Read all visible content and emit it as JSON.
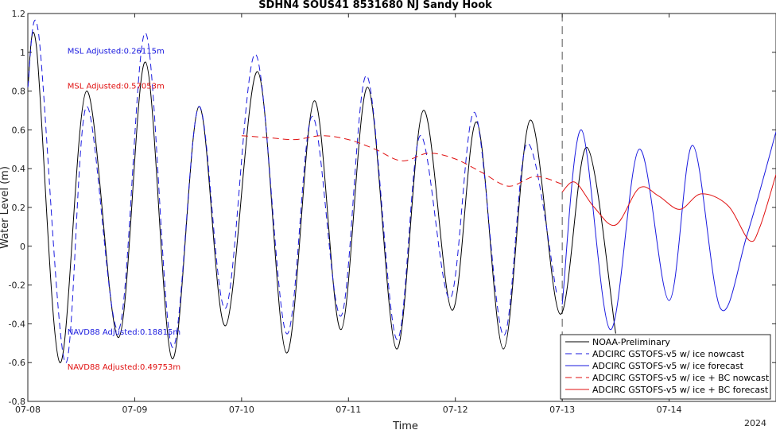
{
  "chart_data": {
    "type": "line",
    "title": "SDHN4 SOUS41 8531680 NJ Sandy Hook",
    "xlabel": "Time",
    "ylabel": "Water Level (m)",
    "xlim": [
      0,
      7
    ],
    "ylim": [
      -0.8,
      1.2
    ],
    "x_ticks": [
      {
        "x": 0,
        "label": "07-08"
      },
      {
        "x": 1,
        "label": "07-09"
      },
      {
        "x": 2,
        "label": "07-10"
      },
      {
        "x": 3,
        "label": "07-11"
      },
      {
        "x": 4,
        "label": "07-12"
      },
      {
        "x": 5,
        "label": "07-13"
      },
      {
        "x": 6,
        "label": "07-14"
      }
    ],
    "year_label": "2024",
    "y_ticks": [
      -0.8,
      -0.6,
      -0.4,
      -0.2,
      0,
      0.2,
      0.4,
      0.6,
      0.8,
      1,
      1.2
    ],
    "y_tick_labels": [
      "-0.8",
      "-0.6",
      "-0.4",
      "-0.2",
      "0",
      "0.2",
      "0.4",
      "0.6",
      "0.8",
      "1",
      "1.2"
    ],
    "nowcast_divider_x": 5.0,
    "grid": false,
    "legend_position": "bottom-right",
    "annotations": [
      {
        "text": "MSL Adjusted:0.26115m",
        "color": "#1a1adf",
        "x": 0.37,
        "y": 1.01
      },
      {
        "text": "MSL Adjusted:0.57053m",
        "color": "#e01010",
        "x": 0.37,
        "y": 0.83
      },
      {
        "text": "NAVD88 Adjusted:0.18815m",
        "color": "#1a1adf",
        "x": 0.37,
        "y": -0.44
      },
      {
        "text": "NAVD88 Adjusted:0.49753m",
        "color": "#e01010",
        "x": 0.37,
        "y": -0.62
      }
    ],
    "series": [
      {
        "name": "NOAA-Preliminary",
        "color": "#000000",
        "dash": "",
        "x": [
          0.0,
          0.08,
          0.3,
          0.55,
          0.85,
          1.1,
          1.35,
          1.6,
          1.85,
          2.15,
          2.42,
          2.68,
          2.93,
          3.18,
          3.45,
          3.7,
          3.97,
          4.2,
          4.45,
          4.7,
          4.98,
          5.23,
          5.5
        ],
        "y": [
          0.82,
          1.03,
          -0.6,
          0.8,
          -0.47,
          0.95,
          -0.58,
          0.72,
          -0.41,
          0.9,
          -0.55,
          0.75,
          -0.43,
          0.82,
          -0.53,
          0.7,
          -0.33,
          0.64,
          -0.53,
          0.65,
          -0.35,
          0.51,
          -0.45
        ]
      },
      {
        "name": "ADCIRC GSTOFS-v5 w/ ice nowcast",
        "color": "#1a1adf",
        "dash": "8,5",
        "x": [
          0.0,
          0.1,
          0.35,
          0.55,
          0.85,
          1.1,
          1.35,
          1.6,
          1.85,
          2.13,
          2.42,
          2.66,
          2.93,
          3.17,
          3.45,
          3.67,
          3.95,
          4.18,
          4.45,
          4.67,
          4.95
        ],
        "y": [
          0.82,
          1.1,
          -0.6,
          0.72,
          -0.43,
          1.1,
          -0.52,
          0.72,
          -0.32,
          0.99,
          -0.45,
          0.67,
          -0.36,
          0.88,
          -0.48,
          0.57,
          -0.27,
          0.69,
          -0.46,
          0.53,
          -0.25
        ]
      },
      {
        "name": "ADCIRC GSTOFS-v5 w/ ice forecast",
        "color": "#1a1adf",
        "dash": "",
        "x": [
          5.0,
          5.18,
          5.45,
          5.72,
          6.0,
          6.22,
          6.48,
          6.73,
          7.0
        ],
        "y": [
          -0.3,
          0.6,
          -0.43,
          0.5,
          -0.28,
          0.52,
          -0.32,
          0.06,
          0.59
        ]
      },
      {
        "name": "ADCIRC GSTOFS-v5 w/ ice + BC nowcast",
        "color": "#e01010",
        "dash": "8,5",
        "x": [
          2.0,
          2.25,
          2.5,
          2.75,
          3.0,
          3.25,
          3.5,
          3.75,
          4.0,
          4.25,
          4.5,
          4.75,
          5.0
        ],
        "y": [
          0.57,
          0.56,
          0.55,
          0.57,
          0.55,
          0.5,
          0.44,
          0.48,
          0.45,
          0.38,
          0.31,
          0.36,
          0.32
        ]
      },
      {
        "name": "ADCIRC GSTOFS-v5 w/ ice + BC forecast",
        "color": "#e01010",
        "dash": "",
        "x": [
          5.0,
          5.12,
          5.3,
          5.5,
          5.72,
          5.9,
          6.1,
          6.3,
          6.55,
          6.75,
          6.85,
          7.0
        ],
        "y": [
          0.28,
          0.33,
          0.2,
          0.11,
          0.3,
          0.26,
          0.19,
          0.27,
          0.21,
          0.03,
          0.1,
          0.37
        ]
      }
    ]
  }
}
